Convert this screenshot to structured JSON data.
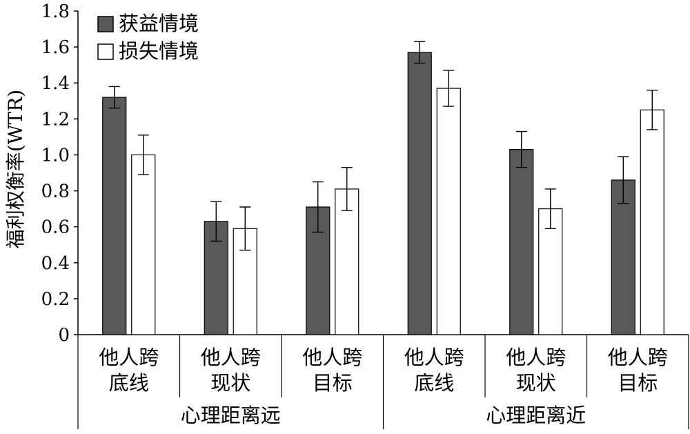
{
  "chart_data": {
    "type": "bar",
    "title": "",
    "xlabel": "",
    "ylabel": "福利权衡率(WTR)",
    "ylim": [
      0,
      1.8
    ],
    "ytick_step": 0.2,
    "yticks": [
      "0",
      "0.2",
      "0.4",
      "0.6",
      "0.8",
      "1.0",
      "1.2",
      "1.4",
      "1.6",
      "1.8"
    ],
    "grid": false,
    "legend_position": "top-left",
    "groups": [
      {
        "label": "心理距离远",
        "categories": [
          {
            "line1": "他人跨",
            "line2": "底线"
          },
          {
            "line1": "他人跨",
            "line2": "现状"
          },
          {
            "line1": "他人跨",
            "line2": "目标"
          }
        ]
      },
      {
        "label": "心理距离近",
        "categories": [
          {
            "line1": "他人跨",
            "line2": "底线"
          },
          {
            "line1": "他人跨",
            "line2": "现状"
          },
          {
            "line1": "他人跨",
            "line2": "目标"
          }
        ]
      }
    ],
    "series": [
      {
        "name": "获益情境",
        "color": "#595959",
        "values": [
          1.32,
          0.63,
          0.71,
          1.57,
          1.03,
          0.86
        ],
        "errors": [
          0.06,
          0.11,
          0.14,
          0.06,
          0.1,
          0.13
        ]
      },
      {
        "name": "损失情境",
        "color": "#ffffff",
        "values": [
          1.0,
          0.59,
          0.81,
          1.37,
          0.7,
          1.25
        ],
        "errors": [
          0.11,
          0.12,
          0.12,
          0.1,
          0.11,
          0.11
        ]
      }
    ]
  }
}
